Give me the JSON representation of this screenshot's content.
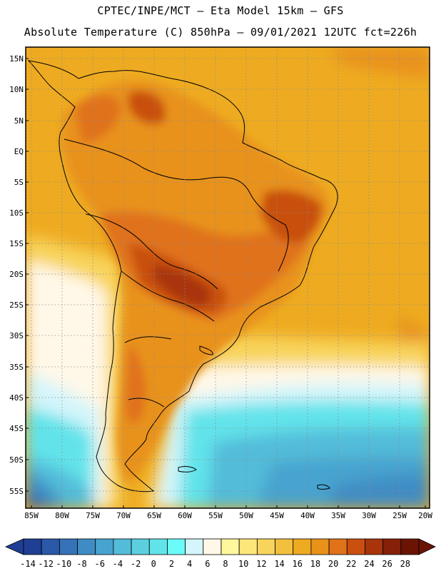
{
  "header": {
    "line1": "CPTEC/INPE/MCT –  Eta Model 15km – GFS",
    "line2": "Absolute Temperature (C) 850hPa – 09/01/2021 12UTC fct=226h"
  },
  "map": {
    "region": "South America",
    "lat_labels": [
      "15N",
      "10N",
      "5N",
      "EQ",
      "5S",
      "10S",
      "15S",
      "20S",
      "25S",
      "30S",
      "35S",
      "40S",
      "45S",
      "50S",
      "55S"
    ],
    "lon_labels": [
      "85W",
      "80W",
      "75W",
      "70W",
      "65W",
      "60W",
      "55W",
      "50W",
      "45W",
      "40W",
      "35W",
      "30W",
      "25W",
      "20W"
    ]
  },
  "colorbar": {
    "labels": [
      "-14",
      "-12",
      "-10",
      "-8",
      "-6",
      "-4",
      "-2",
      "0",
      "2",
      "4",
      "6",
      "8",
      "10",
      "12",
      "14",
      "16",
      "18",
      "20",
      "22",
      "24",
      "26",
      "28"
    ],
    "colors": [
      "#1f3f94",
      "#2a59a8",
      "#3672b8",
      "#3f8cc4",
      "#47a3cf",
      "#52bcd9",
      "#5bcfe0",
      "#62e3ea",
      "#6afaf8",
      "#d3f5fb",
      "#fff8e8",
      "#fff79b",
      "#fde77a",
      "#f8d45c",
      "#f2c03e",
      "#eeab21",
      "#e8921a",
      "#e0721a",
      "#c9500f",
      "#a8340b",
      "#862008",
      "#6b1404"
    ]
  }
}
